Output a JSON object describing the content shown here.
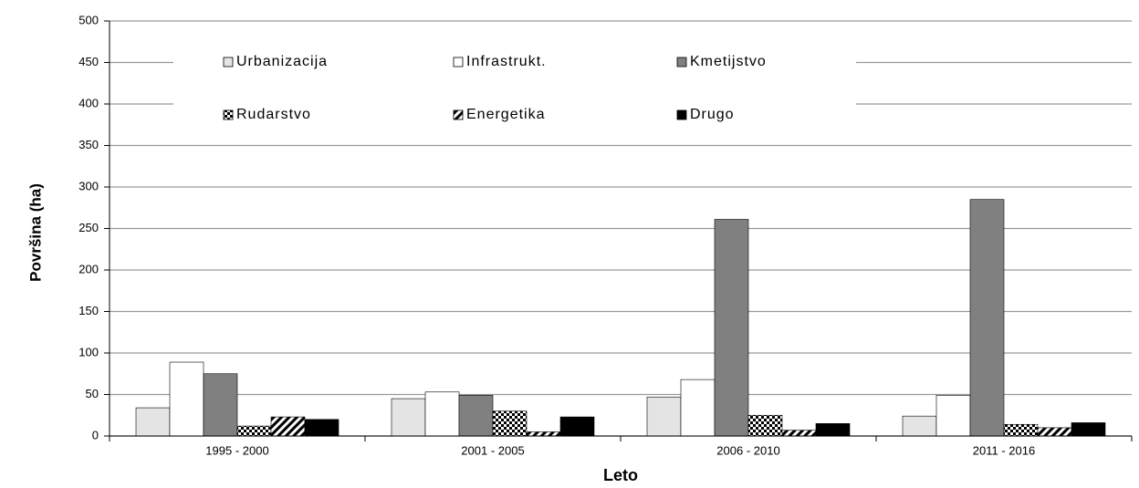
{
  "chart_data": {
    "type": "bar",
    "x_label": "Leto",
    "y_label": "Površina (ha)",
    "categories": [
      "1995 - 2000",
      "2001 - 2005",
      "2006 - 2010",
      "2011 - 2016"
    ],
    "series": [
      {
        "name": "Urbanizacija",
        "color": "#e4e4e4",
        "values": [
          34,
          45,
          47,
          24
        ]
      },
      {
        "name": "Infrastrukt.",
        "color": "#ffffff",
        "values": [
          89,
          53,
          68,
          49
        ]
      },
      {
        "name": "Kmetijstvo",
        "color": "#808080",
        "values": [
          75,
          49,
          261,
          285
        ]
      },
      {
        "name": "Rudarstvo",
        "color": "#000000",
        "pattern": "checker",
        "values": [
          12,
          30,
          25,
          14
        ]
      },
      {
        "name": "Energetika",
        "color": "#000000",
        "pattern": "hatch",
        "values": [
          23,
          5,
          7,
          10
        ]
      },
      {
        "name": "Drugo",
        "color": "#000000",
        "values": [
          20,
          23,
          15,
          16
        ]
      }
    ],
    "ylim": [
      0,
      500
    ],
    "yticks": [
      0,
      50,
      100,
      150,
      200,
      250,
      300,
      350,
      400,
      450,
      500
    ],
    "grid": true,
    "legend": "top"
  }
}
